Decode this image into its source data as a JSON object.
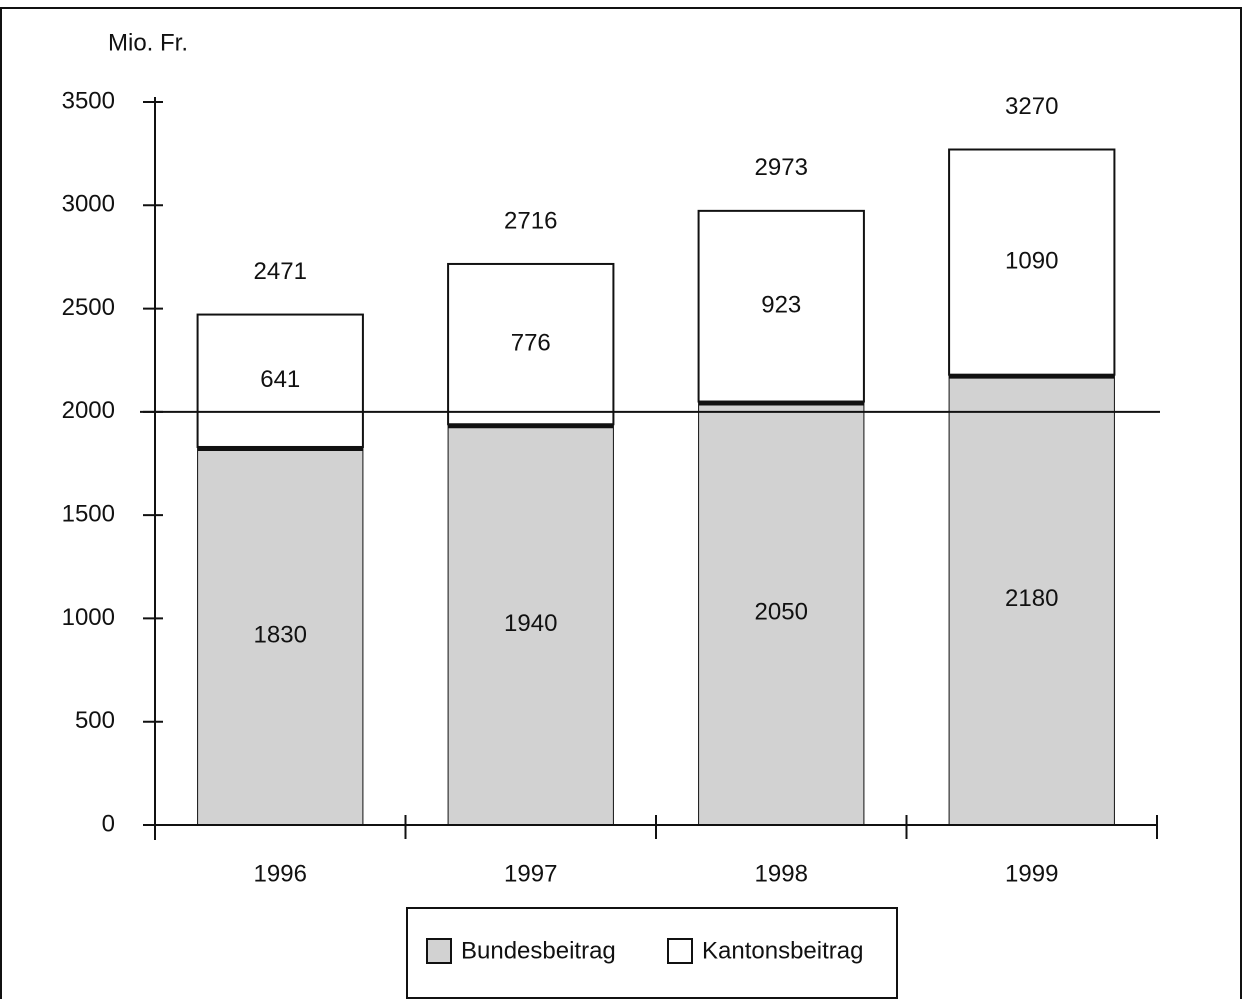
{
  "chart_data": {
    "type": "stacked_bar",
    "y_axis_label": "Mio. Fr.",
    "categories": [
      "1996",
      "1997",
      "1998",
      "1999"
    ],
    "series": [
      {
        "name": "Bundesbeitrag",
        "color": "#d2d2d2",
        "values": [
          1830,
          1940,
          2050,
          2180
        ]
      },
      {
        "name": "Kantonsbeitrag",
        "color": "#ffffff",
        "values": [
          641,
          776,
          923,
          1090
        ]
      }
    ],
    "totals": [
      2471,
      2716,
      2973,
      3270
    ],
    "reference_line": 2000,
    "ylim": [
      0,
      3500
    ],
    "yticks": [
      0,
      500,
      1000,
      1500,
      2000,
      2500,
      3000,
      3500
    ],
    "legend": "bottom"
  }
}
